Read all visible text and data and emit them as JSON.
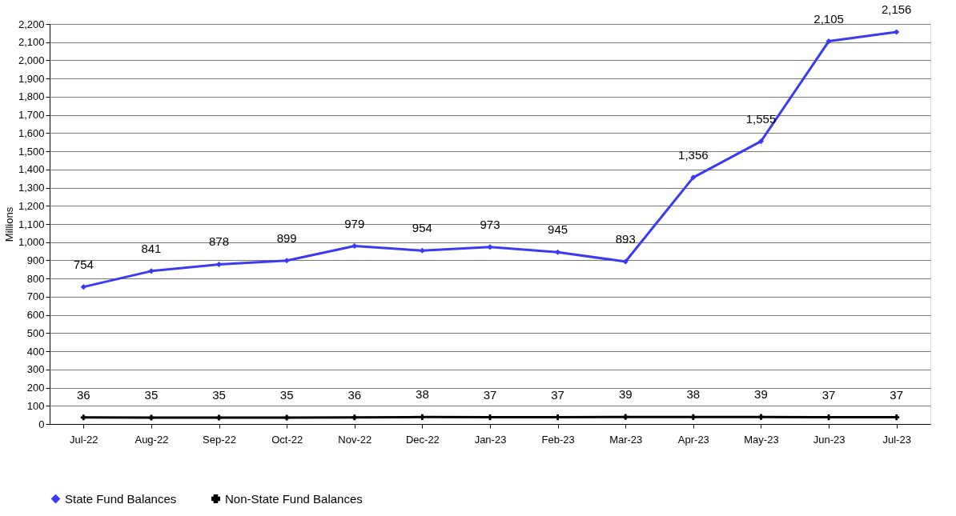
{
  "chart_data": {
    "type": "line",
    "ylabel": "Millions",
    "categories": [
      "Jul-22",
      "Aug-22",
      "Sep-22",
      "Oct-22",
      "Nov-22",
      "Dec-22",
      "Jan-23",
      "Feb-23",
      "Mar-23",
      "Apr-23",
      "May-23",
      "Jun-23",
      "Jul-23"
    ],
    "series": [
      {
        "name": "State Fund Balances",
        "color": "#3a3af5",
        "marker": "diamond",
        "values": [
          754,
          841,
          878,
          899,
          979,
          954,
          973,
          945,
          893,
          1356,
          1555,
          2105,
          2156
        ],
        "value_labels": [
          "754",
          "841",
          "878",
          "899",
          "979",
          "954",
          "973",
          "945",
          "893",
          "1,356",
          "1,555",
          "2,105",
          "2,156"
        ]
      },
      {
        "name": "Non-State Fund Balances",
        "color": "#000000",
        "marker": "cross",
        "values": [
          36,
          35,
          35,
          35,
          36,
          38,
          37,
          37,
          39,
          38,
          39,
          37,
          37
        ],
        "value_labels": [
          "36",
          "35",
          "35",
          "35",
          "36",
          "38",
          "37",
          "37",
          "39",
          "38",
          "39",
          "37",
          "37"
        ]
      }
    ],
    "ylim": [
      0,
      2200
    ],
    "yticks": [
      0,
      100,
      200,
      300,
      400,
      500,
      600,
      700,
      800,
      900,
      {
        "value": 1000,
        "label": "1,000"
      },
      {
        "value": 1100,
        "label": "1,100"
      },
      {
        "value": 1200,
        "label": "1,200"
      },
      {
        "value": 1300,
        "label": "1,300"
      },
      {
        "value": 1400,
        "label": "1,400"
      },
      {
        "value": 1500,
        "label": "1,500"
      },
      {
        "value": 1600,
        "label": "1,600"
      },
      {
        "value": 1700,
        "label": "1,700"
      },
      {
        "value": 1800,
        "label": "1,800"
      },
      {
        "value": 1900,
        "label": "1,900"
      },
      {
        "value": 2000,
        "label": "2,000"
      },
      {
        "value": 2100,
        "label": "2,100"
      },
      {
        "value": 2200,
        "label": "2,200"
      }
    ],
    "grid": "y",
    "legend": "bottom"
  }
}
